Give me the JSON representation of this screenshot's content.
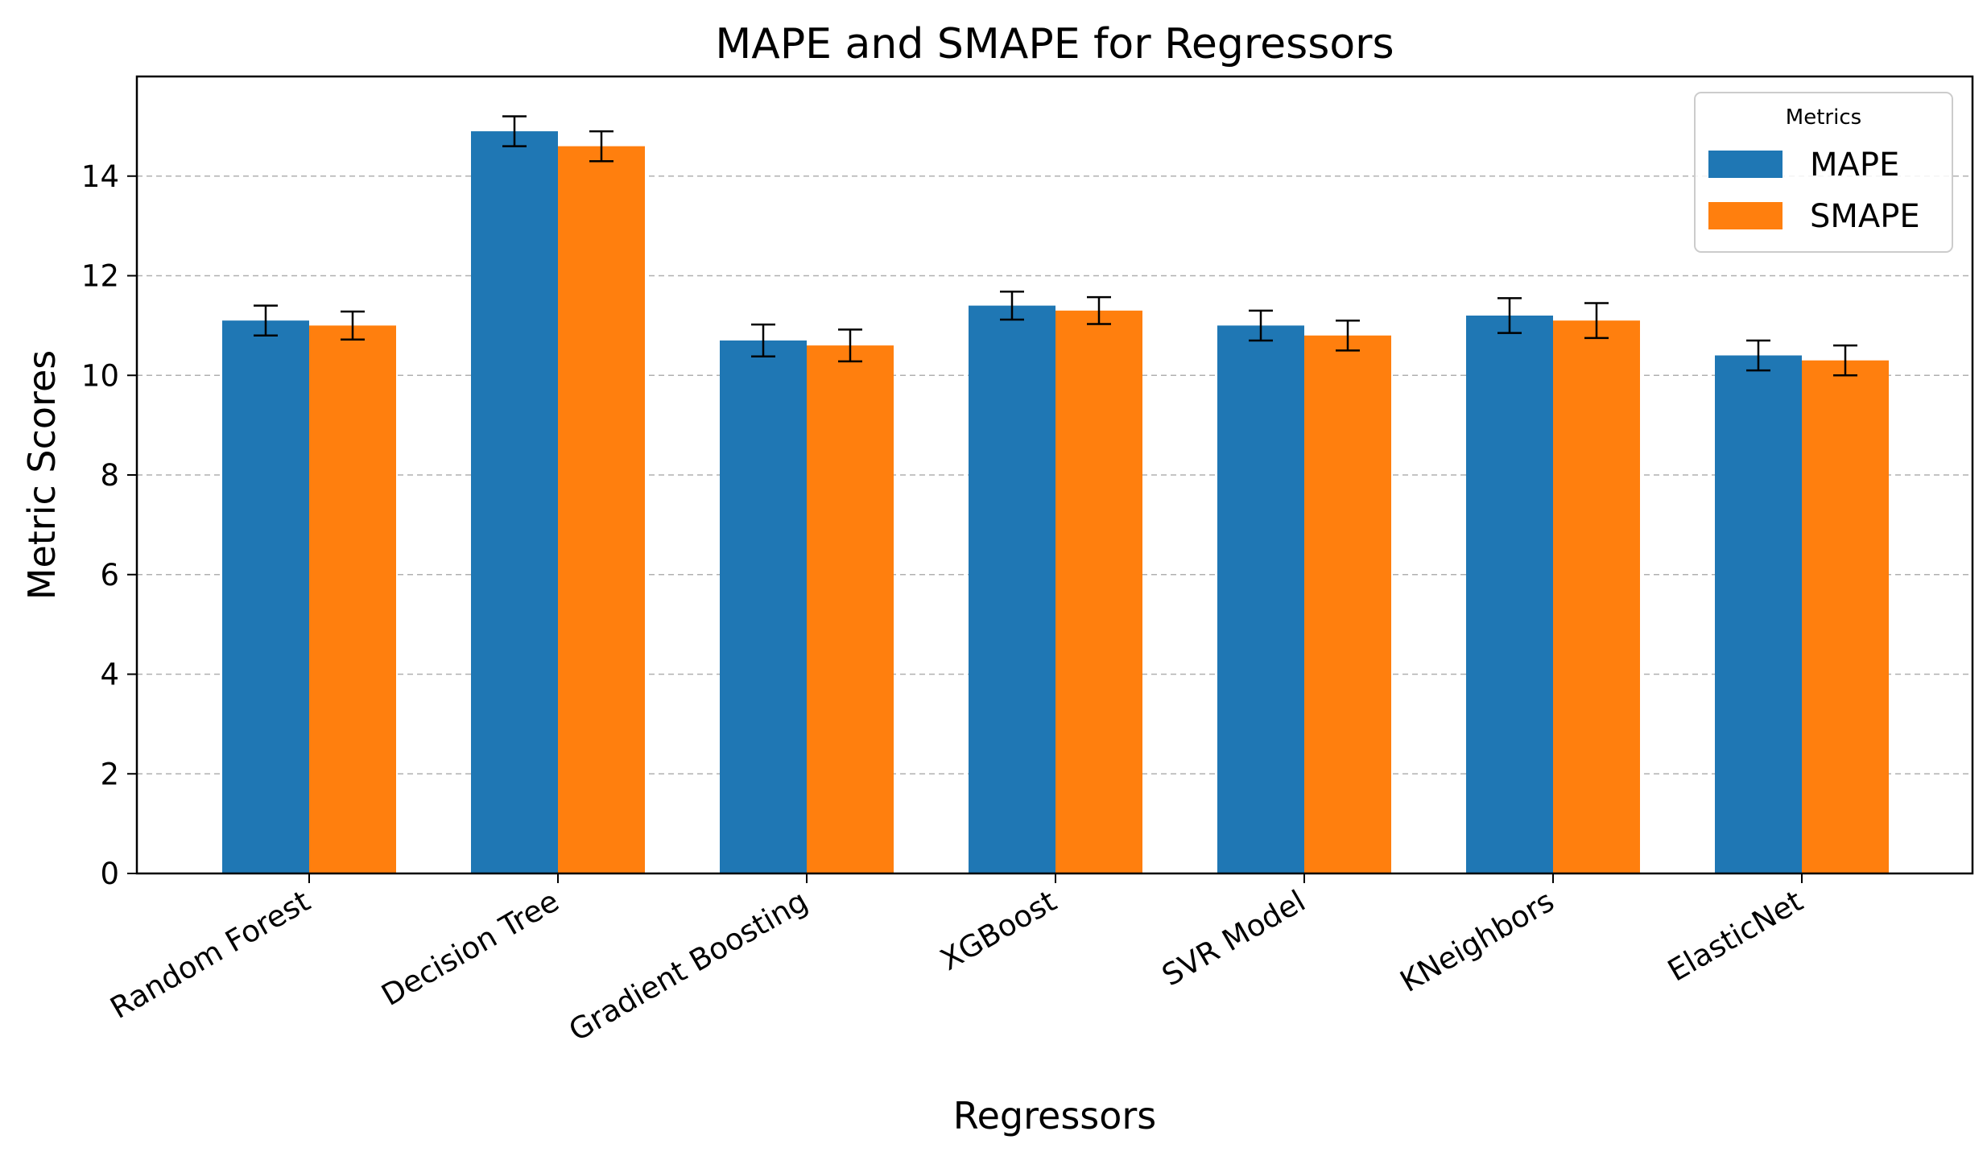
{
  "chart_data": {
    "type": "bar",
    "title": "MAPE and SMAPE for Regressors",
    "xlabel": "Regressors",
    "ylabel": "Metric Scores",
    "categories": [
      "Random Forest",
      "Decision Tree",
      "Gradient Boosting",
      "XGBoost",
      "SVR Model",
      "KNeighbors",
      "ElasticNet"
    ],
    "series": [
      {
        "name": "MAPE",
        "color": "#1f77b4",
        "values": [
          11.1,
          14.9,
          10.7,
          11.4,
          11.0,
          11.2,
          10.4
        ],
        "errors": [
          0.3,
          0.3,
          0.32,
          0.28,
          0.3,
          0.35,
          0.3
        ]
      },
      {
        "name": "SMAPE",
        "color": "#ff7f0e",
        "values": [
          11.0,
          14.6,
          10.6,
          11.3,
          10.8,
          11.1,
          10.3
        ],
        "errors": [
          0.28,
          0.3,
          0.32,
          0.27,
          0.3,
          0.35,
          0.3
        ]
      }
    ],
    "ylim": [
      0,
      16
    ],
    "yticks": [
      0,
      2,
      4,
      6,
      8,
      10,
      12,
      14
    ],
    "grid": "y dashed",
    "legend": {
      "title": "Metrics",
      "placement": "top-right"
    }
  }
}
